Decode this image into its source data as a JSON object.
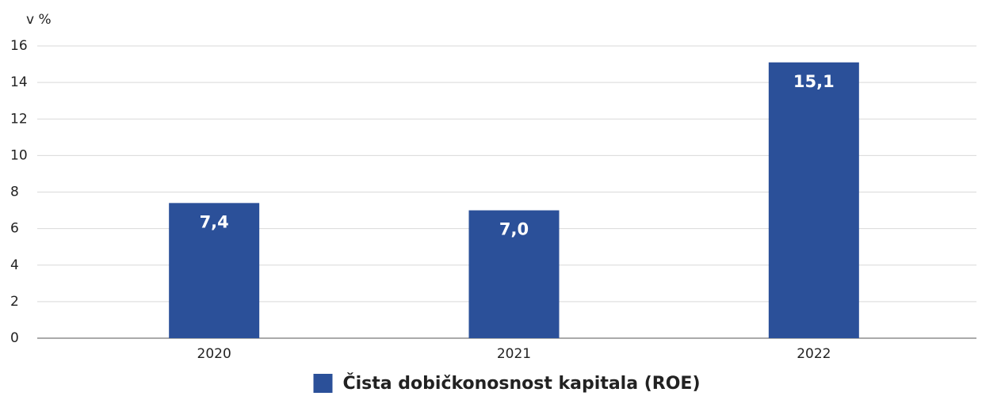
{
  "chart_data": {
    "type": "bar",
    "y_label": "v %",
    "categories": [
      "2020",
      "2021",
      "2022"
    ],
    "series": [
      {
        "name": "Čista dobičkonosnost kapitala (ROE)",
        "color": "#2b5099",
        "values": [
          7.4,
          7.0,
          15.1
        ],
        "value_labels": [
          "7,4",
          "7,0",
          "15,1"
        ]
      }
    ],
    "ylim": [
      0,
      16
    ],
    "yticks": [
      0,
      2,
      4,
      6,
      8,
      10,
      12,
      14,
      16
    ],
    "grid": true,
    "legend": "bottom"
  }
}
